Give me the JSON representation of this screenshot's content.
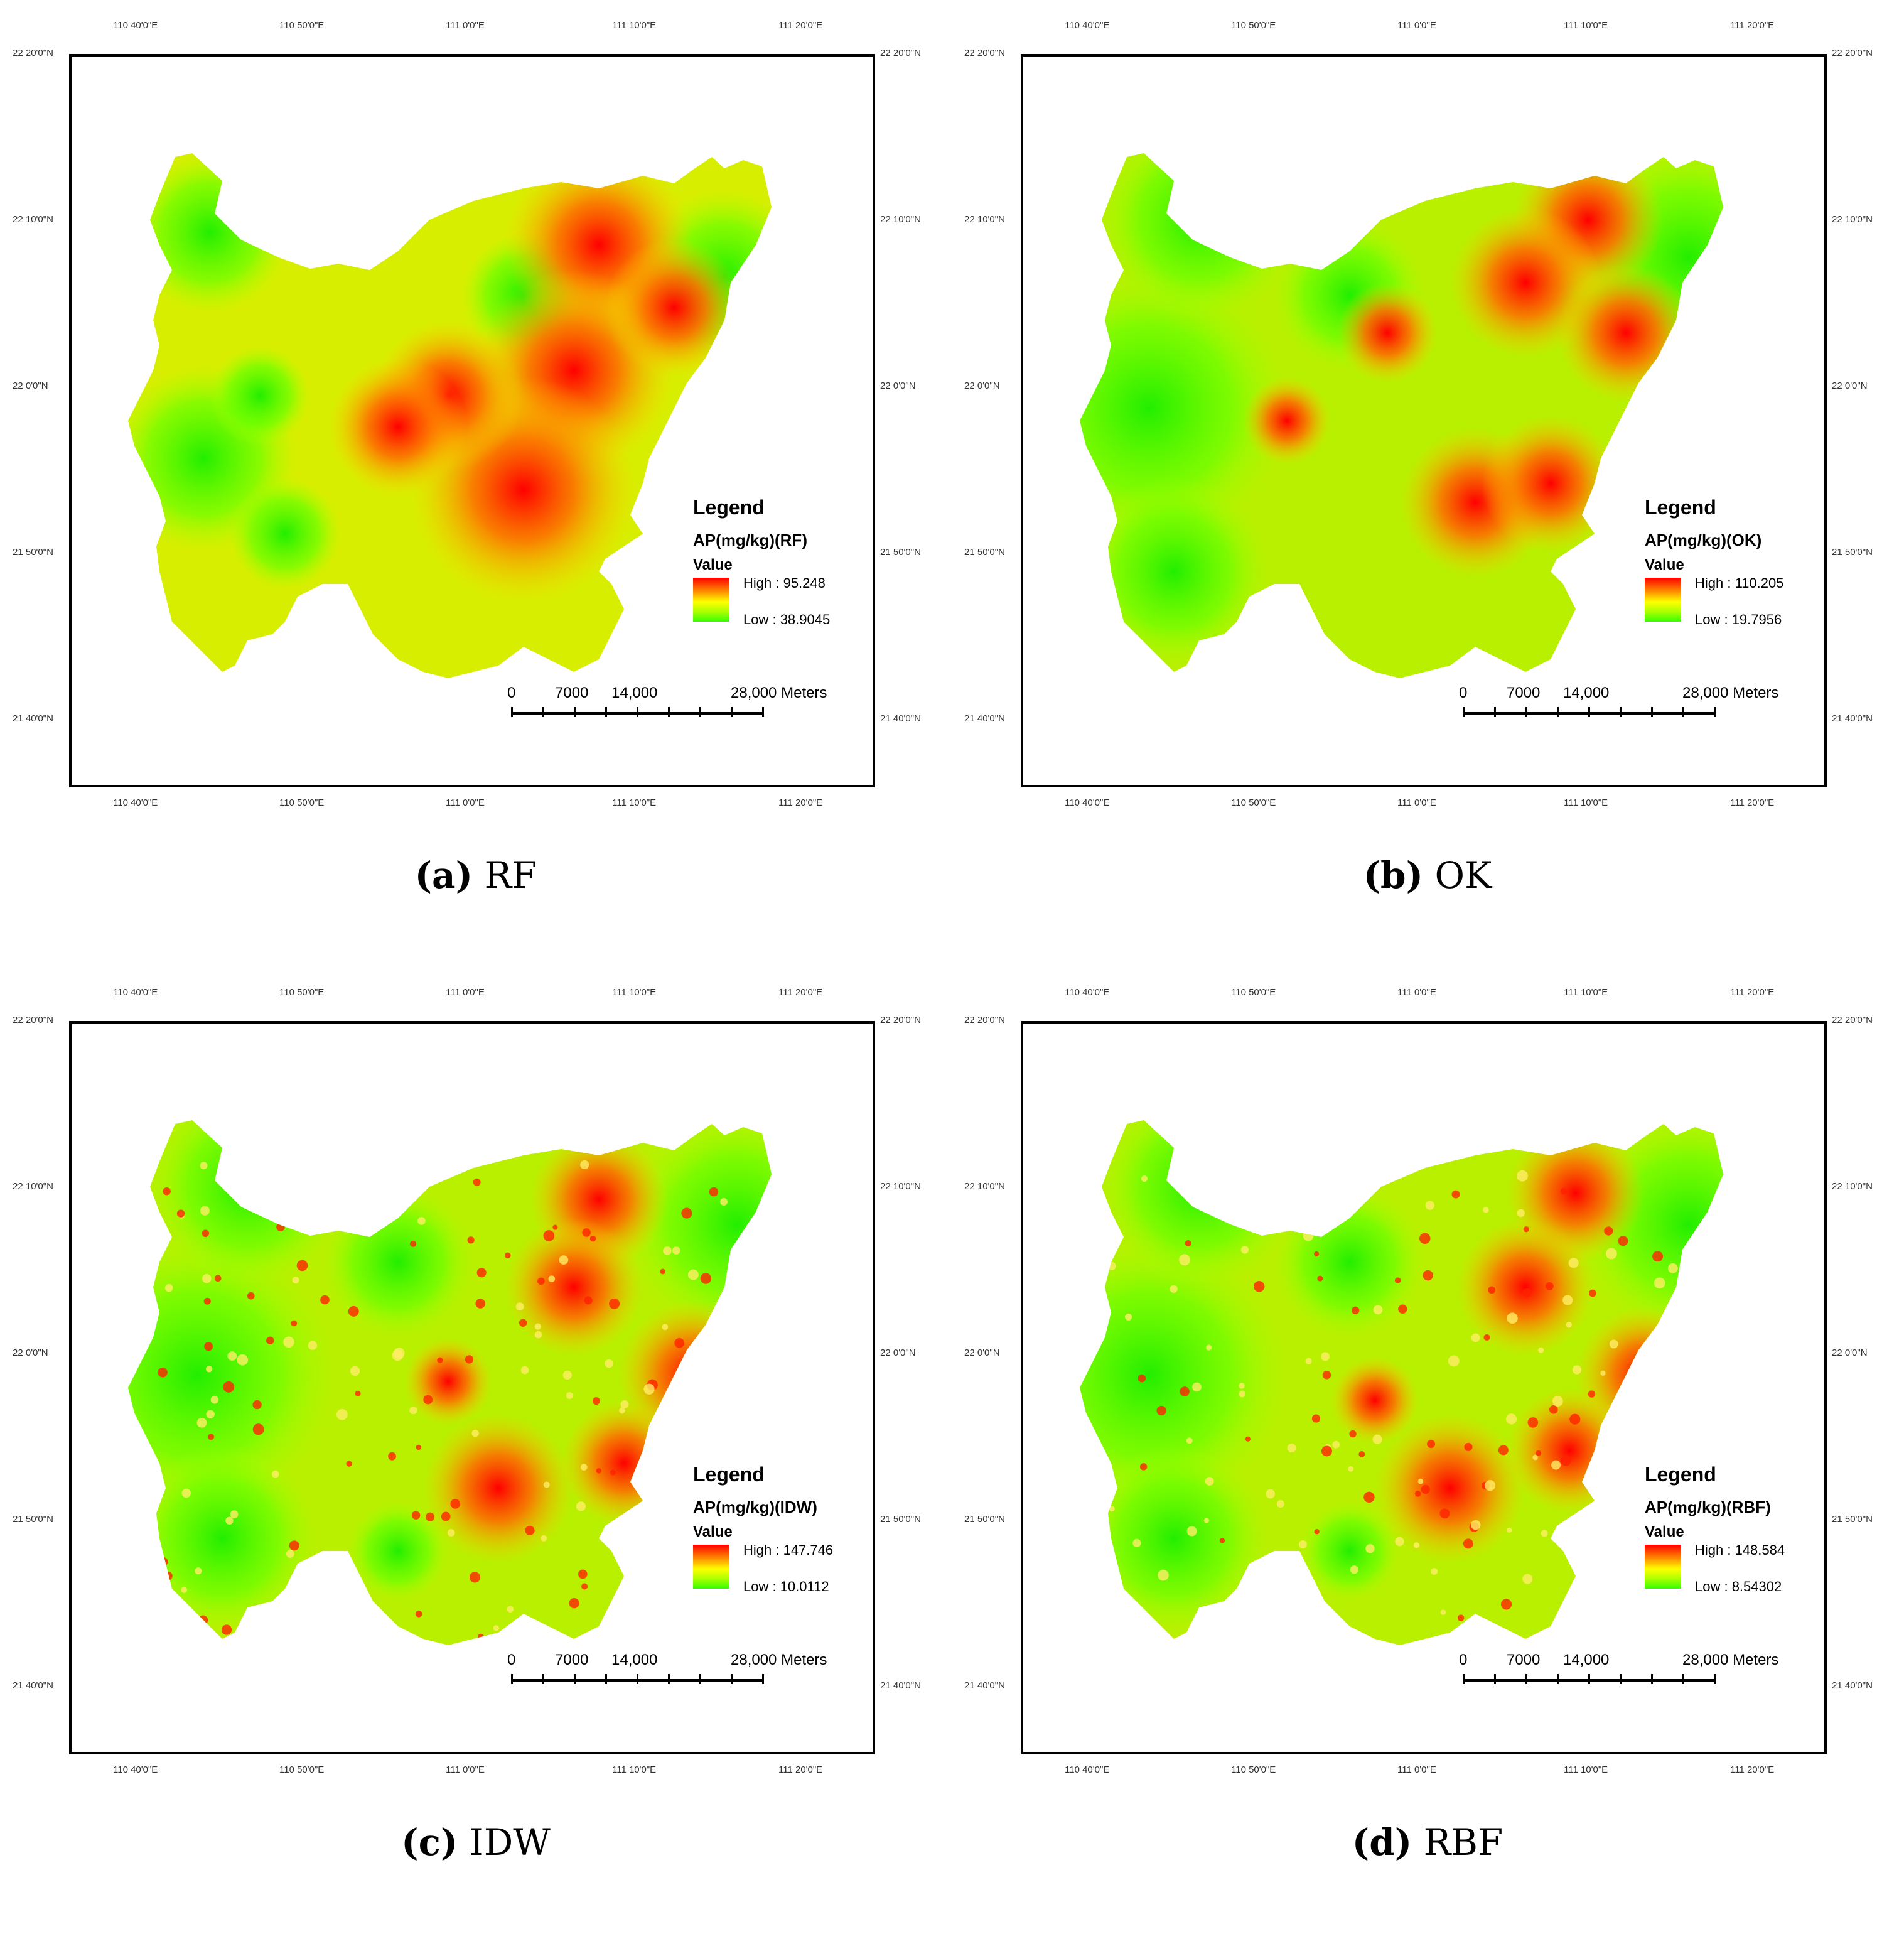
{
  "axes": {
    "top_ticks": [
      "110 40'0\"E",
      "110 50'0\"E",
      "111 0'0\"E",
      "111 10'0\"E",
      "111 20'0\"E"
    ],
    "bottom_ticks": [
      "110 40'0\"E",
      "110 50'0\"E",
      "111 0'0\"E",
      "111 10'0\"E",
      "111 20'0\"E"
    ],
    "left_ticks": [
      "22 20'0\"N",
      "22 10'0\"N",
      "22 0'0\"N",
      "21 50'0\"N",
      "21 40'0\"N"
    ],
    "right_ticks": [
      "22 20'0\"N",
      "22 10'0\"N",
      "22 0'0\"N",
      "21 50'0\"N",
      "21 40'0\"N"
    ]
  },
  "scale_bar": {
    "labels": [
      "0",
      "7000",
      "14,000",
      "28,000 Meters"
    ]
  },
  "colors": {
    "high": "#ff0000",
    "mid": "#ffff00",
    "low": "#33ff00",
    "frame": "#000000"
  },
  "panels": [
    {
      "caption_letter": "(a)",
      "caption_text": "RF",
      "legend_title": "Legend",
      "legend_field": "AP(mg/kg)(RF)",
      "legend_value_label": "Value",
      "legend_high": "High : 95.248",
      "legend_low": "Low : 38.9045"
    },
    {
      "caption_letter": "(b)",
      "caption_text": "OK",
      "legend_title": "Legend",
      "legend_field": "AP(mg/kg)(OK)",
      "legend_value_label": "Value",
      "legend_high": "High : 110.205",
      "legend_low": "Low : 19.7956"
    },
    {
      "caption_letter": "(c)",
      "caption_text": "IDW",
      "legend_title": "Legend",
      "legend_field": "AP(mg/kg)(IDW)",
      "legend_value_label": "Value",
      "legend_high": "High : 147.746",
      "legend_low": "Low : 10.0112"
    },
    {
      "caption_letter": "(d)",
      "caption_text": "RBF",
      "legend_title": "Legend",
      "legend_field": "AP(mg/kg)(RBF)",
      "legend_value_label": "Value",
      "legend_high": "High : 148.584",
      "legend_low": "Low : 8.54302"
    }
  ]
}
